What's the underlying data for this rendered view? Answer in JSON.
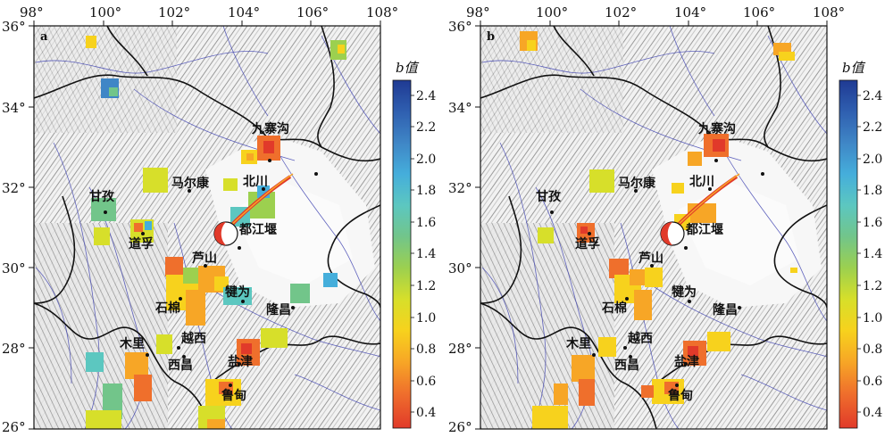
{
  "panels": [
    {
      "letter": "a",
      "colorbar_title": "b值"
    },
    {
      "letter": "b",
      "colorbar_title": "b值"
    }
  ],
  "lon_ticks": [
    "98°",
    "100°",
    "102°",
    "104°",
    "106°",
    "108°"
  ],
  "lat_ticks": [
    "36°",
    "34°",
    "32°",
    "30°",
    "28°",
    "26°"
  ],
  "colorbar_ticks": [
    "2.4",
    "2.2",
    "2.0",
    "1.8",
    "1.6",
    "1.4",
    "1.2",
    "1.0",
    "0.8",
    "0.6",
    "0.4"
  ],
  "colorbar_colors": [
    "#1f3a93",
    "#2f5fb0",
    "#3f86c6",
    "#45aedb",
    "#5cc7c0",
    "#72c58a",
    "#9cd04f",
    "#d7df2a",
    "#f7d21d",
    "#f7a626",
    "#ef6f2c",
    "#e13a2a"
  ],
  "places": {
    "jiuzhaigou": "九寨沟",
    "maerkang": "马尔康",
    "beichuan": "北川",
    "ganzi": "甘孜",
    "dujiangyan": "都江堰",
    "daofu": "道孚",
    "lushan": "芦山",
    "jianwei": "犍为",
    "shimian": "石棉",
    "longchang": "隆昌",
    "muli": "木里",
    "yuexi": "越西",
    "xichang": "西昌",
    "yanjin": "盐津",
    "huidian": "鲁甸"
  }
}
